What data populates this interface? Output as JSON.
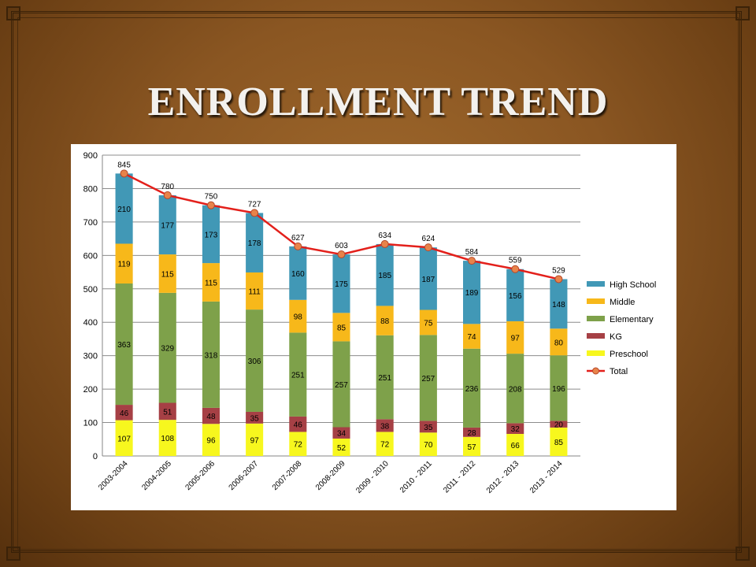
{
  "slide": {
    "title": "ENROLLMENT TREND"
  },
  "colors": {
    "high_school": "#4198b6",
    "middle": "#f7b81a",
    "elementary": "#7ea14a",
    "kg": "#a64045",
    "preschool": "#f7f71e",
    "total": "#e3201b",
    "total_marker": "#e8834a"
  },
  "chart_data": {
    "type": "bar",
    "stacked": true,
    "categories": [
      "2003-2004",
      "2004-2005",
      "2005-2006",
      "2006-2007",
      "2007-2008",
      "2008-2009",
      "2009 - 2010",
      "2010 - 2011",
      "2011 - 2012",
      "2012 - 2013",
      "2013 - 2014"
    ],
    "series": [
      {
        "name": "Preschool",
        "key": "preschool",
        "values": [
          107,
          108,
          96,
          97,
          72,
          52,
          72,
          70,
          57,
          66,
          85
        ]
      },
      {
        "name": "KG",
        "key": "kg",
        "values": [
          46,
          51,
          48,
          35,
          46,
          34,
          38,
          35,
          28,
          32,
          20
        ]
      },
      {
        "name": "Elementary",
        "key": "elementary",
        "values": [
          363,
          329,
          318,
          306,
          251,
          257,
          251,
          257,
          236,
          208,
          196
        ]
      },
      {
        "name": "Middle",
        "key": "middle",
        "values": [
          119,
          115,
          115,
          111,
          98,
          85,
          88,
          75,
          74,
          97,
          80
        ]
      },
      {
        "name": "High School",
        "key": "high_school",
        "values": [
          210,
          177,
          173,
          178,
          160,
          175,
          185,
          187,
          189,
          156,
          148
        ]
      }
    ],
    "line": {
      "name": "Total",
      "key": "total",
      "values": [
        845,
        780,
        750,
        727,
        627,
        603,
        634,
        624,
        584,
        559,
        529
      ]
    },
    "legend_order": [
      "High School",
      "Middle",
      "Elementary",
      "KG",
      "Preschool",
      "Total"
    ],
    "legend_position": "right",
    "ylim": [
      0,
      900
    ],
    "yticks": [
      0,
      100,
      200,
      300,
      400,
      500,
      600,
      700,
      800,
      900
    ],
    "grid": true,
    "title": "",
    "xlabel": "",
    "ylabel": ""
  }
}
